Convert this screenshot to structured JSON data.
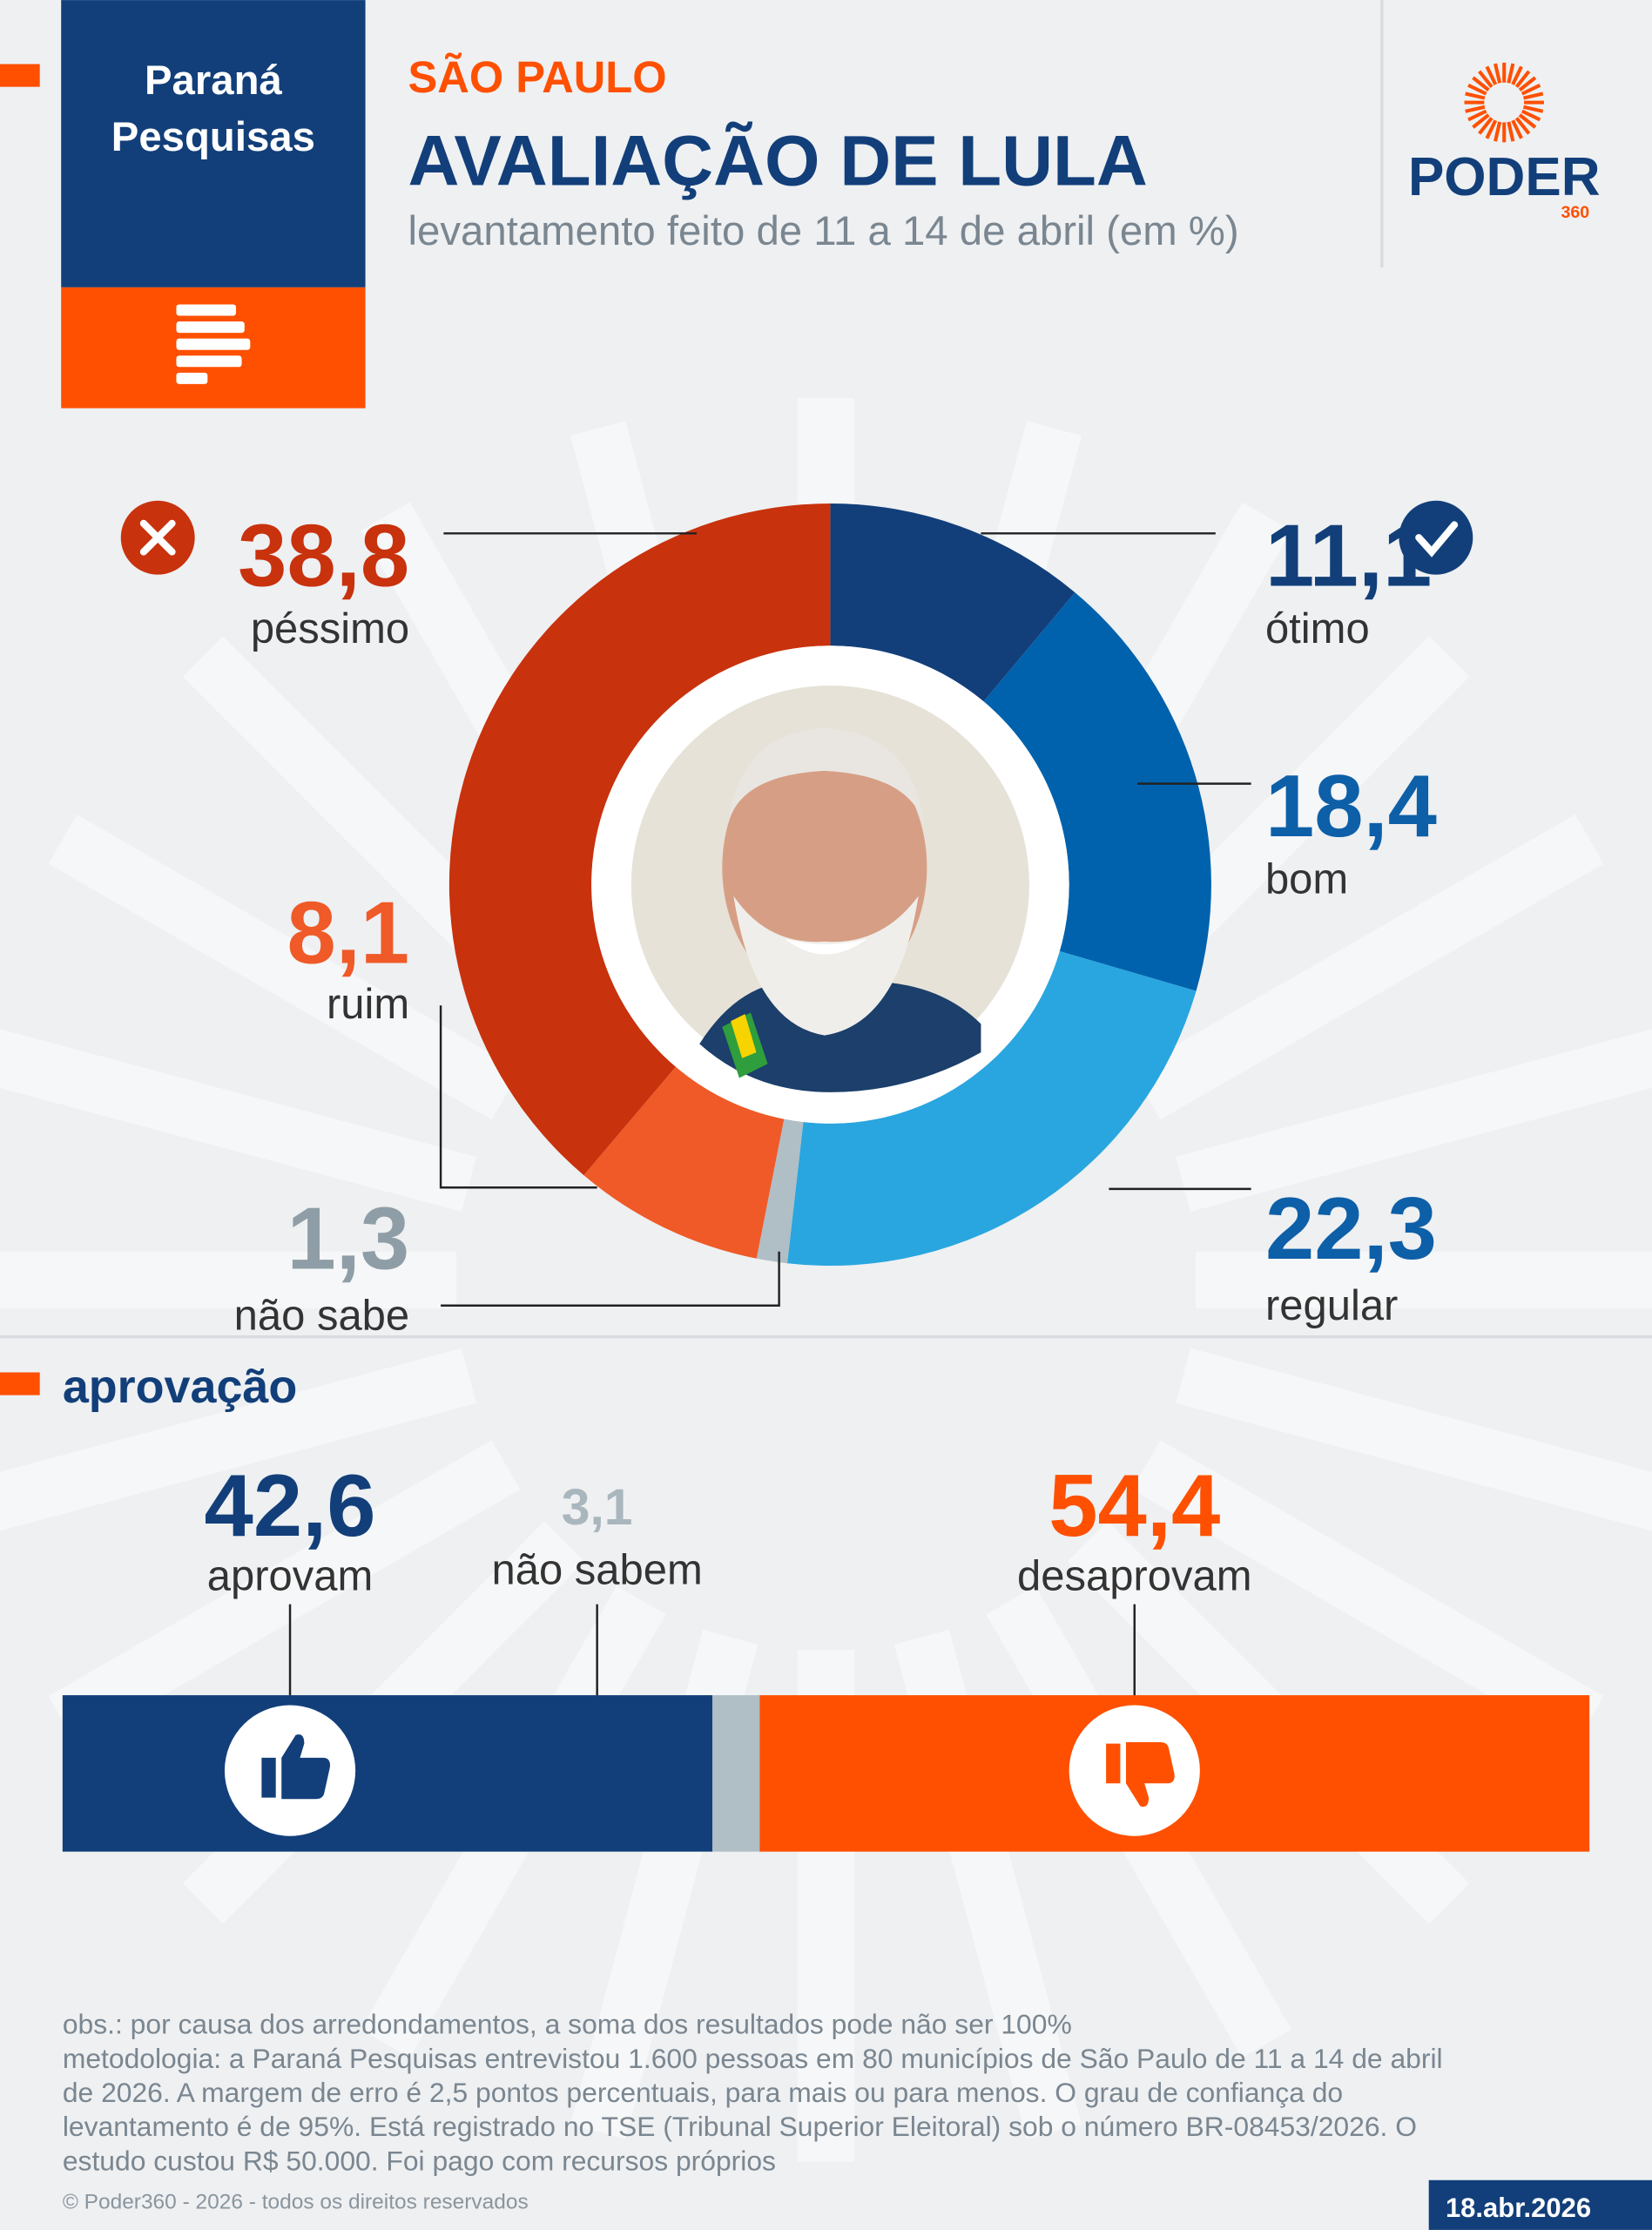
{
  "header": {
    "source": [
      "Paraná",
      "Pesquisas"
    ],
    "region": "SÃO PAULO",
    "title": "AVALIAÇÃO DE LULA",
    "subtitle": "levantamento feito de 11 a 14 de abril (em %)",
    "brand": "PODER",
    "brand_sub": "360"
  },
  "chart_data": [
    {
      "type": "donut",
      "categories": [
        "ótimo",
        "bom",
        "regular",
        "não sabe",
        "ruim",
        "péssimo"
      ],
      "values": [
        11.1,
        18.4,
        22.3,
        1.3,
        8.1,
        38.8
      ],
      "value_labels": [
        "11,1",
        "18,4",
        "22,3",
        "1,3",
        "8,1",
        "38,8"
      ],
      "colors": [
        "#123f7a",
        "#0062ad",
        "#29a6df",
        "#b0bec5",
        "#ef5a28",
        "#c8320d"
      ]
    },
    {
      "type": "stacked-bar",
      "title": "aprovação",
      "categories": [
        "aprovam",
        "não sabem",
        "desaprovam"
      ],
      "values": [
        42.6,
        3.1,
        54.4
      ],
      "value_labels": [
        "42,6",
        "3,1",
        "54,4"
      ],
      "colors": [
        "#123f7a",
        "#b0bec5",
        "#fe5000"
      ],
      "xlim": [
        0,
        100.1
      ]
    }
  ],
  "notes": {
    "obs": "obs.: por causa dos arredondamentos, a soma dos resultados pode não ser 100%",
    "method": [
      "metodologia: a Paraná Pesquisas entrevistou 1.600 pessoas em 80 municípios de São Paulo de 11 a 14 de abril",
      "de 2026. A margem de erro é 2,5 pontos percentuais, para mais ou para menos. O grau de confiança do",
      "levantamento é de 95%. Está registrado no TSE (Tribunal Superior Eleitoral) sob o número BR-08453/2026. O",
      "estudo custou R$ 50.000. Foi pago com recursos próprios"
    ],
    "copyright": "© Poder360 - 2026 - todos os direitos reservados",
    "date": "18.abr.2026"
  }
}
